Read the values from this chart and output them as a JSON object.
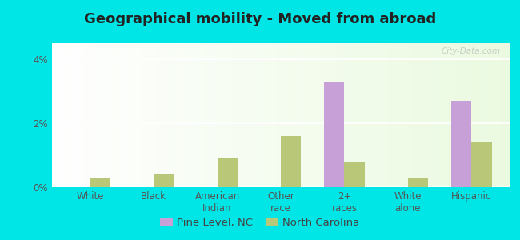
{
  "title": "Geographical mobility - Moved from abroad",
  "categories": [
    "White",
    "Black",
    "American\nIndian",
    "Other\nrace",
    "2+\nraces",
    "White\nalone",
    "Hispanic"
  ],
  "pine_level": [
    0.0,
    0.0,
    0.0,
    0.0,
    3.3,
    0.0,
    2.7
  ],
  "north_carolina": [
    0.3,
    0.4,
    0.9,
    1.6,
    0.8,
    0.3,
    1.4
  ],
  "pine_level_color": "#c8a0d8",
  "nc_color": "#b8c878",
  "background_color": "#00e5e5",
  "ylim": [
    0,
    4.5
  ],
  "yticks": [
    0,
    2,
    4
  ],
  "ytick_labels": [
    "0%",
    "2%",
    "4%"
  ],
  "legend_pine": "Pine Level, NC",
  "legend_nc": "North Carolina",
  "bar_width": 0.32,
  "title_fontsize": 13,
  "tick_fontsize": 8.5,
  "legend_fontsize": 9.5,
  "watermark": "City-Data.com",
  "grid_color": "#ffffff",
  "plot_bg_left": "#f5fbee",
  "plot_bg_right": "#e0f0cc"
}
